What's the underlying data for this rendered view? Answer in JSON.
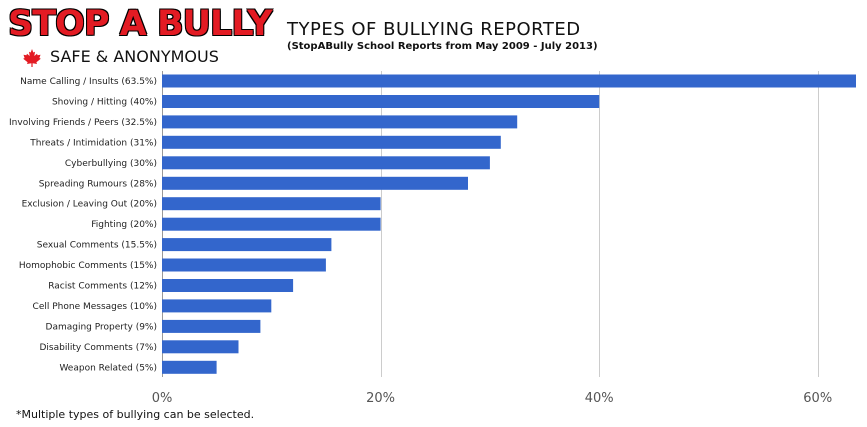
{
  "logo": {
    "main_text": "STOP A BULLY",
    "sub_text": "SAFE & ANONYMOUS",
    "icon": "maple-leaf-icon",
    "main_color": "#e31b23"
  },
  "header": {
    "title": "TYPES OF BULLYING REPORTED",
    "subtitle": "(StopABully School Reports from May 2009 - July 2013)"
  },
  "footnote": "*Multiple types of bullying can be selected.",
  "chart_data": {
    "type": "bar",
    "orientation": "horizontal",
    "title": "TYPES OF BULLYING REPORTED",
    "subtitle": "(StopABully School Reports from May 2009 - July 2013)",
    "categories": [
      "Name Calling / Insults (63.5%)",
      "Shoving / Hitting (40%)",
      "Involving Friends / Peers (32.5%)",
      "Threats / Intimidation (31%)",
      "Cyberbullying (30%)",
      "Spreading Rumours (28%)",
      "Exclusion / Leaving Out (20%)",
      "Fighting (20%)",
      "Sexual Comments (15.5%)",
      "Homophobic Comments (15%)",
      "Racist Comments (12%)",
      "Cell Phone Messages (10%)",
      "Damaging Property (9%)",
      "Disability Comments (7%)",
      "Weapon Related (5%)"
    ],
    "values": [
      63.5,
      40,
      32.5,
      31,
      30,
      28,
      20,
      20,
      15.5,
      15,
      12,
      10,
      9,
      7,
      5
    ],
    "xlim": [
      0,
      63.5
    ],
    "xticks": [
      0,
      20,
      40,
      60
    ],
    "xtick_labels": [
      "0%",
      "20%",
      "40%",
      "60%"
    ],
    "xlabel": "",
    "ylabel": "",
    "grid": true,
    "legend": "none",
    "bar_color": "#3366cc",
    "grid_color": "#cccccc"
  }
}
